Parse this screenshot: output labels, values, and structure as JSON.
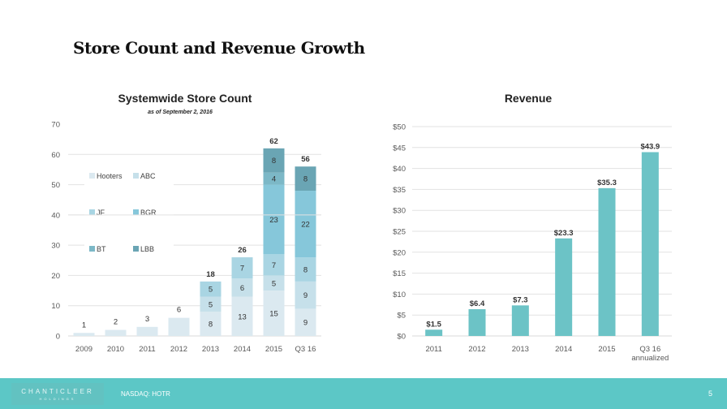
{
  "slide": {
    "title": "Store Count and Revenue Growth",
    "footer": {
      "logo_text": "CHANTICLEER",
      "logo_subtext": "HOLDINGS",
      "ticker": "NASDAQ: HOTR",
      "page_number": "5"
    }
  },
  "chart_data": [
    {
      "type": "bar",
      "stacked": true,
      "title": "Systemwide Store Count",
      "subtitle": "as of September 2, 2016",
      "xlabel": "",
      "ylabel": "",
      "ylim": [
        0,
        70
      ],
      "yticks": [
        0,
        10,
        20,
        30,
        40,
        50,
        60,
        70
      ],
      "grid": true,
      "legend_position": "left",
      "categories": [
        "2009",
        "2010",
        "2011",
        "2012",
        "2013",
        "2014",
        "2015",
        "Q3 16"
      ],
      "series": [
        {
          "name": "Hooters",
          "color": "#dbe9f0",
          "values": [
            1,
            2,
            3,
            6,
            8,
            13,
            15,
            9
          ]
        },
        {
          "name": "ABC",
          "color": "#c6e0ea",
          "values": [
            0,
            0,
            0,
            0,
            5,
            6,
            5,
            9
          ]
        },
        {
          "name": "JF",
          "color": "#a9d5e3",
          "values": [
            0,
            0,
            0,
            0,
            5,
            7,
            7,
            8
          ]
        },
        {
          "name": "BGR",
          "color": "#86c7da",
          "values": [
            0,
            0,
            0,
            0,
            0,
            0,
            23,
            22
          ]
        },
        {
          "name": "BT",
          "color": "#7cb8c7",
          "values": [
            0,
            0,
            0,
            0,
            0,
            0,
            4,
            0
          ]
        },
        {
          "name": "LBB",
          "color": "#6aa5b4",
          "values": [
            0,
            0,
            0,
            0,
            0,
            0,
            8,
            8
          ]
        }
      ],
      "totals": [
        null,
        null,
        null,
        null,
        18,
        26,
        62,
        56
      ]
    },
    {
      "type": "bar",
      "title": "Revenue",
      "xlabel": "",
      "ylabel": "",
      "ylim": [
        0,
        50
      ],
      "yticks": [
        0,
        5,
        10,
        15,
        20,
        25,
        30,
        35,
        40,
        45,
        50
      ],
      "ytick_prefix": "$",
      "grid": true,
      "color": "#6cc3c6",
      "categories": [
        "2011",
        "2012",
        "2013",
        "2014",
        "2015",
        "Q3 16\nannualized"
      ],
      "values": [
        1.5,
        6.4,
        7.3,
        23.3,
        35.3,
        43.9
      ],
      "data_labels": [
        "$1.5",
        "$6.4",
        "$7.3",
        "$23.3",
        "$35.3",
        "$43.9"
      ]
    }
  ]
}
